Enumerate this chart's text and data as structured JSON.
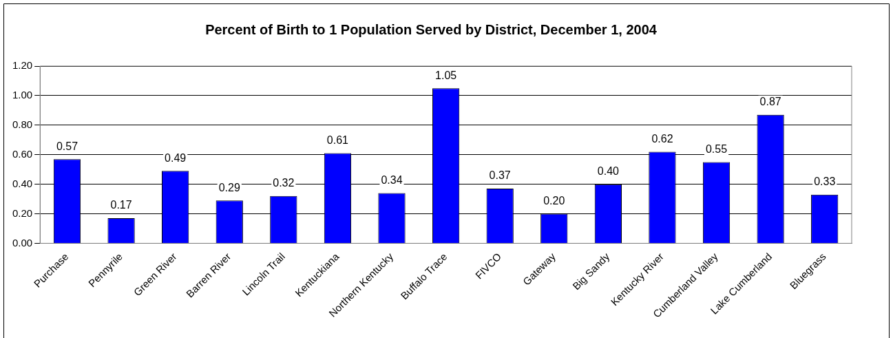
{
  "chart_data": {
    "type": "bar",
    "title": "Percent of Birth to 1 Population Served by District, December 1, 2004",
    "categories": [
      "Purchase",
      "Pennyrile",
      "Green River",
      "Barren River",
      "Lincoln Trail",
      "Kentuckiana",
      "Northern Kentucky",
      "Buffalo Trace",
      "FIVCO",
      "Gateway",
      "Big Sandy",
      "Kentucky River",
      "Cumberland Valley",
      "Lake Cumberland",
      "Bluegrass"
    ],
    "values": [
      0.57,
      0.17,
      0.49,
      0.29,
      0.32,
      0.61,
      0.34,
      1.05,
      0.37,
      0.2,
      0.4,
      0.62,
      0.55,
      0.87,
      0.33
    ],
    "value_labels": [
      "0.57",
      "0.17",
      "0.49",
      "0.29",
      "0.32",
      "0.61",
      "0.34",
      "1.05",
      "0.37",
      "0.20",
      "0.40",
      "0.62",
      "0.55",
      "0.87",
      "0.33"
    ],
    "color": "#0000ff",
    "ylim": [
      0,
      1.2
    ],
    "yticks": [
      {
        "value": 0,
        "label": "0.00"
      },
      {
        "value": 0.2,
        "label": "0.20"
      },
      {
        "value": 0.4,
        "label": "0.40"
      },
      {
        "value": 0.6,
        "label": "0.60"
      },
      {
        "value": 0.8,
        "label": "0.80"
      },
      {
        "value": 1.0,
        "label": "1.00"
      },
      {
        "value": 1.2,
        "label": "1.20"
      }
    ],
    "grid": "y",
    "legend": false
  }
}
